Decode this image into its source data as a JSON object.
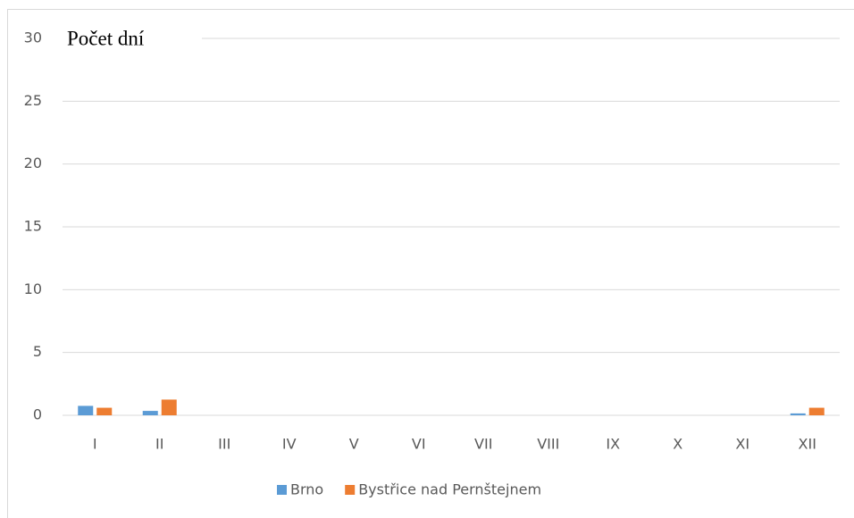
{
  "chart_data": {
    "type": "bar",
    "title": "Počet dní",
    "categories": [
      "I",
      "II",
      "III",
      "IV",
      "V",
      "VI",
      "VII",
      "VIII",
      "IX",
      "X",
      "XI",
      "XII"
    ],
    "series": [
      {
        "name": "Brno",
        "color": "#5b9bd5",
        "values": [
          0.75,
          0.35,
          0,
          0,
          0,
          0,
          0,
          0,
          0,
          0,
          0,
          0.15
        ]
      },
      {
        "name": "Bystřice nad Pernštejnem",
        "color": "#ed7d31",
        "values": [
          0.6,
          1.25,
          0,
          0,
          0,
          0,
          0,
          0,
          0,
          0,
          0,
          0.6
        ]
      }
    ],
    "ylim": [
      0,
      30
    ],
    "yticks": [
      0,
      5,
      10,
      15,
      20,
      25,
      30
    ],
    "grid": true,
    "legend": "bottom"
  }
}
